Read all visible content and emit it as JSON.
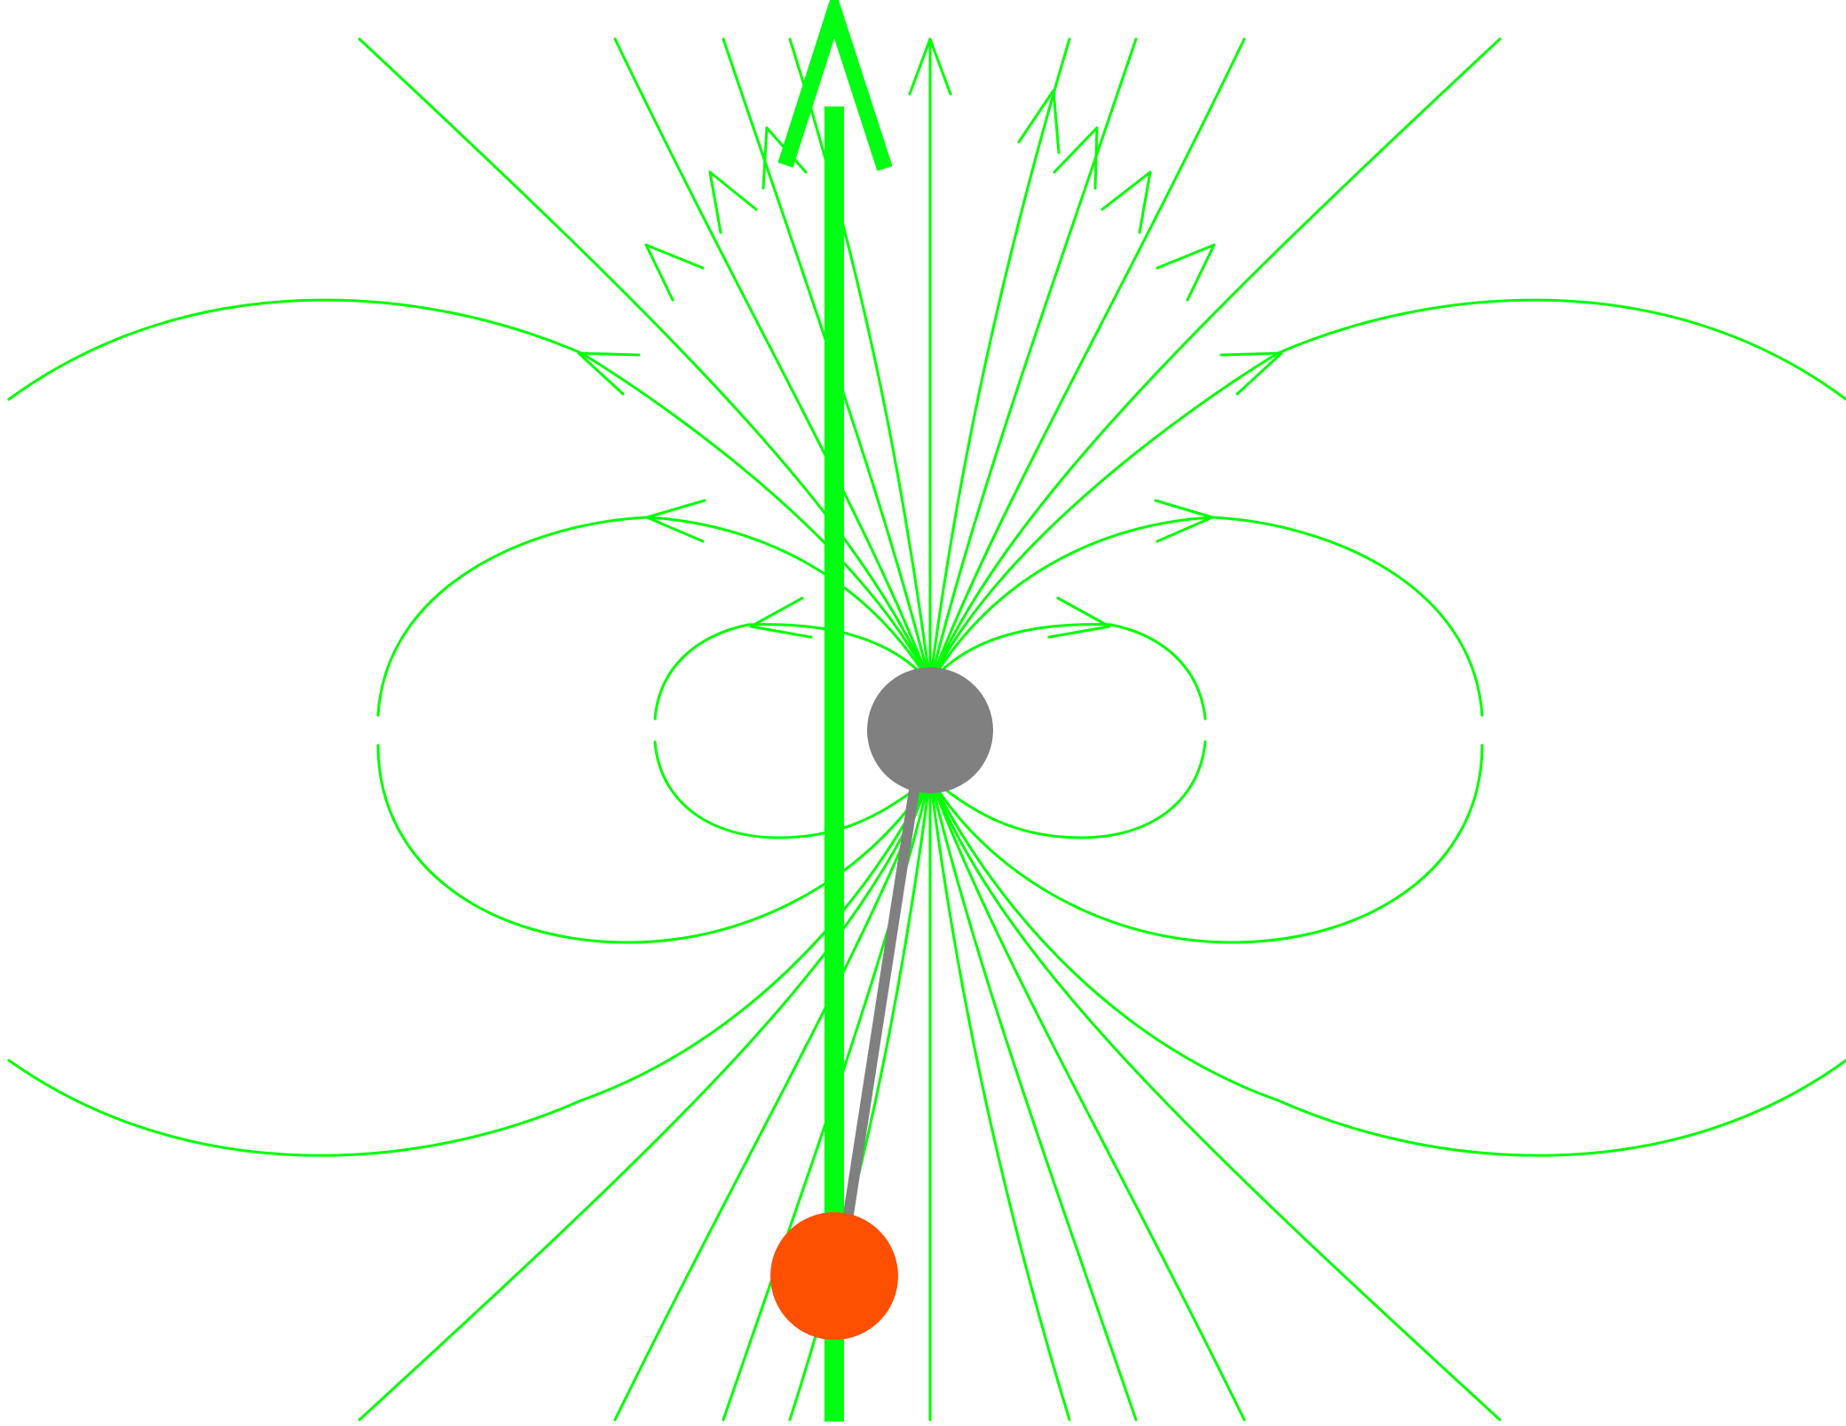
{
  "diagram": {
    "kind": "magnetic-dipole-field",
    "colors": {
      "field_lines": "#00ff00",
      "main_arrow": "#00ff12",
      "dipole": "#808080",
      "probe": "#ff4f00",
      "connector": "#808080",
      "background": "#ffffff"
    },
    "elements": {
      "dipole": "magnetic-dipole",
      "probe": "test-charge",
      "arrow": "field-vector-arrow",
      "connector": "separation-line"
    }
  }
}
